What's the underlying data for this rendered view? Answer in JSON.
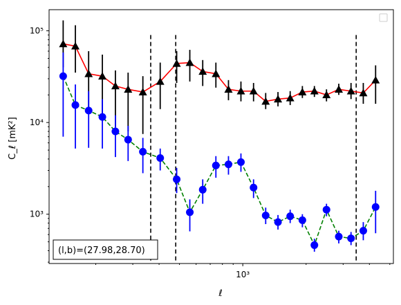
{
  "chart_data": {
    "type": "line",
    "xlabel": "ℓ",
    "ylabel": "C_ℓ [mK²]",
    "xscale": "log",
    "yscale": "log",
    "xlim": [
      120,
      5200
    ],
    "ylim": [
      290,
      170000
    ],
    "x_tick_labels": [
      {
        "value": 1000,
        "label": "10³"
      }
    ],
    "y_tick_labels": [
      {
        "value": 1000,
        "label": "10³"
      },
      {
        "value": 10000,
        "label": "10⁴"
      },
      {
        "value": 100000,
        "label": "10⁵"
      }
    ],
    "vlines": [
      365,
      480,
      3460
    ],
    "annotation": "(l,b)=(27.98,28.70)",
    "legend": "top-right, empty",
    "grid": false,
    "series": [
      {
        "color": "#ff0000",
        "marker": "triangle",
        "marker_color": "#000000",
        "errorbar_color": "#000000",
        "linestyle": "solid",
        "points": [
          {
            "x": 140,
            "y": 72000,
            "lo": 40000,
            "hi": 130000
          },
          {
            "x": 160,
            "y": 68000,
            "lo": 35000,
            "hi": 115000
          },
          {
            "x": 185,
            "y": 34000,
            "lo": 14000,
            "hi": 60000
          },
          {
            "x": 215,
            "y": 32000,
            "lo": 12000,
            "hi": 55000
          },
          {
            "x": 248,
            "y": 25000,
            "lo": 9000,
            "hi": 37000
          },
          {
            "x": 285,
            "y": 23000,
            "lo": 8000,
            "hi": 35000
          },
          {
            "x": 335,
            "y": 21500,
            "lo": 7500,
            "hi": 32000
          },
          {
            "x": 405,
            "y": 28000,
            "lo": 14000,
            "hi": 45000
          },
          {
            "x": 485,
            "y": 44000,
            "lo": 27000,
            "hi": 60000
          },
          {
            "x": 560,
            "y": 45000,
            "lo": 28000,
            "hi": 62000
          },
          {
            "x": 645,
            "y": 36000,
            "lo": 25000,
            "hi": 48000
          },
          {
            "x": 745,
            "y": 34000,
            "lo": 24000,
            "hi": 45000
          },
          {
            "x": 855,
            "y": 23000,
            "lo": 17500,
            "hi": 29000
          },
          {
            "x": 980,
            "y": 22000,
            "lo": 17000,
            "hi": 28000
          },
          {
            "x": 1125,
            "y": 22000,
            "lo": 17000,
            "hi": 27000
          },
          {
            "x": 1285,
            "y": 17000,
            "lo": 14000,
            "hi": 21000
          },
          {
            "x": 1470,
            "y": 18000,
            "lo": 15000,
            "hi": 21500
          },
          {
            "x": 1680,
            "y": 18500,
            "lo": 15500,
            "hi": 22000
          },
          {
            "x": 1920,
            "y": 21500,
            "lo": 18500,
            "hi": 25000
          },
          {
            "x": 2190,
            "y": 22000,
            "lo": 19000,
            "hi": 25000
          },
          {
            "x": 2500,
            "y": 20000,
            "lo": 17000,
            "hi": 23000
          },
          {
            "x": 2860,
            "y": 23000,
            "lo": 20000,
            "hi": 26500
          },
          {
            "x": 3270,
            "y": 22000,
            "lo": 18000,
            "hi": 27000
          },
          {
            "x": 3740,
            "y": 21000,
            "lo": 16000,
            "hi": 27000
          },
          {
            "x": 4280,
            "y": 29000,
            "lo": 16000,
            "hi": 42000
          }
        ]
      },
      {
        "color": "#008000",
        "marker": "circle",
        "marker_color": "#0000ff",
        "errorbar_color": "#0000ff",
        "linestyle": "dashed",
        "points": [
          {
            "x": 140,
            "y": 32000,
            "lo": 7000,
            "hi": 58000
          },
          {
            "x": 160,
            "y": 15500,
            "lo": 5200,
            "hi": 26000
          },
          {
            "x": 185,
            "y": 13500,
            "lo": 5300,
            "hi": 22000
          },
          {
            "x": 215,
            "y": 11500,
            "lo": 5200,
            "hi": 18000
          },
          {
            "x": 248,
            "y": 8000,
            "lo": 4200,
            "hi": 12000
          },
          {
            "x": 285,
            "y": 6500,
            "lo": 3800,
            "hi": 9200
          },
          {
            "x": 335,
            "y": 4800,
            "lo": 2800,
            "hi": 6800
          },
          {
            "x": 405,
            "y": 4100,
            "lo": 3000,
            "hi": 5200
          },
          {
            "x": 485,
            "y": 2400,
            "lo": 1700,
            "hi": 3200
          },
          {
            "x": 560,
            "y": 1050,
            "lo": 650,
            "hi": 1450
          },
          {
            "x": 645,
            "y": 1850,
            "lo": 1300,
            "hi": 2400
          },
          {
            "x": 745,
            "y": 3400,
            "lo": 2500,
            "hi": 4300
          },
          {
            "x": 855,
            "y": 3500,
            "lo": 2700,
            "hi": 4300
          },
          {
            "x": 980,
            "y": 3700,
            "lo": 2900,
            "hi": 4600
          },
          {
            "x": 1125,
            "y": 1950,
            "lo": 1500,
            "hi": 2400
          },
          {
            "x": 1285,
            "y": 970,
            "lo": 780,
            "hi": 1180
          },
          {
            "x": 1470,
            "y": 820,
            "lo": 680,
            "hi": 980
          },
          {
            "x": 1680,
            "y": 950,
            "lo": 800,
            "hi": 1120
          },
          {
            "x": 1920,
            "y": 860,
            "lo": 720,
            "hi": 1000
          },
          {
            "x": 2190,
            "y": 460,
            "lo": 390,
            "hi": 540
          },
          {
            "x": 2500,
            "y": 1120,
            "lo": 950,
            "hi": 1300
          },
          {
            "x": 2860,
            "y": 570,
            "lo": 480,
            "hi": 660
          },
          {
            "x": 3270,
            "y": 545,
            "lo": 460,
            "hi": 640
          },
          {
            "x": 3740,
            "y": 660,
            "lo": 520,
            "hi": 820
          },
          {
            "x": 4280,
            "y": 1200,
            "lo": 620,
            "hi": 1800
          }
        ]
      }
    ]
  }
}
